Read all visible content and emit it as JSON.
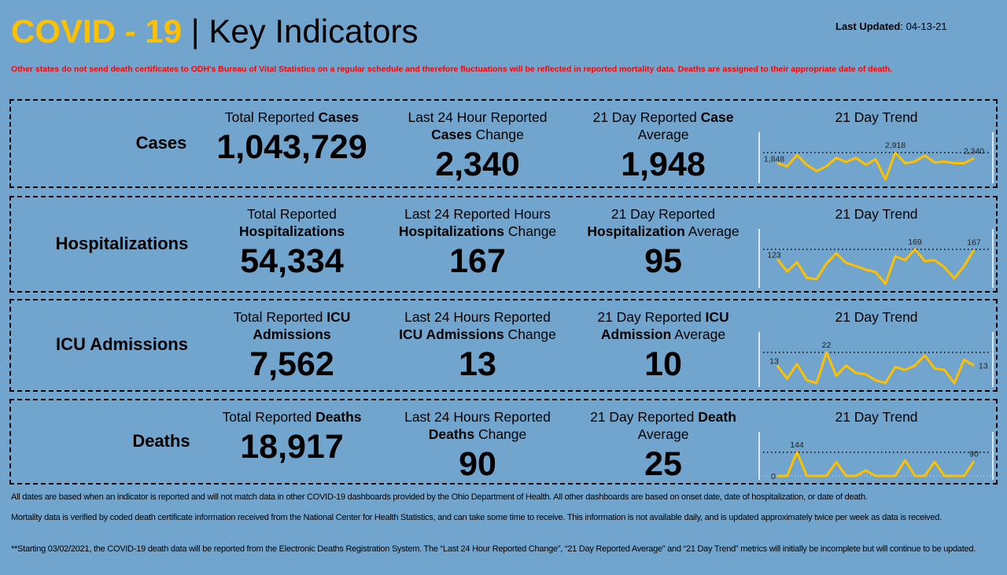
{
  "header": {
    "title_prefix": "COVID - 19",
    "title_sep": " | ",
    "title_main": "Key Indicators",
    "last_updated_label": "Last Updated",
    "last_updated_value": ": 04-13-21"
  },
  "notice": "Other states do not send death certificates to ODH's Bureau of Vital Statistics on a regular schedule and therefore fluctuations will be reflected in reported mortality data. Deaths are assigned to their appropriate date of death.",
  "colors": {
    "background": "#71a5cd",
    "title_accent": "#ffc000",
    "notice": "#ff0000",
    "trend_line": "#ffc000"
  },
  "panels": [
    {
      "label": "Cases",
      "cells": [
        {
          "lines": [
            [
              {
                "text": "Total Reported ",
                "bold": false
              },
              {
                "text": "Cases",
                "bold": true
              }
            ]
          ],
          "value": "1,043,729"
        },
        {
          "lines": [
            [
              {
                "text": "Last 24 Hour Reported",
                "bold": false
              }
            ],
            [
              {
                "text": "Cases",
                "bold": true
              },
              {
                "text": " Change",
                "bold": false
              }
            ]
          ],
          "value": "2,340"
        },
        {
          "lines": [
            [
              {
                "text": "21 Day Reported ",
                "bold": false
              },
              {
                "text": "Case",
                "bold": true
              }
            ],
            [
              {
                "text": "Average",
                "bold": false
              }
            ]
          ],
          "value": "1,948"
        }
      ],
      "trend": {
        "title": "21 Day Trend",
        "values": [
          1848,
          1539,
          2680,
          1681,
          1063,
          1539,
          2395,
          1967,
          2395,
          1681,
          2252,
          228,
          2918,
          1848,
          2015,
          2633,
          1919,
          2015,
          1848,
          1848,
          2340
        ],
        "labels": [
          {
            "index": 0,
            "text": "1,848"
          },
          {
            "index": 12,
            "text": "2,918"
          },
          {
            "index": 20,
            "text": "2,340"
          }
        ]
      }
    },
    {
      "label": "Hospitalizations",
      "cells": [
        {
          "lines": [
            [
              {
                "text": "Total Reported",
                "bold": false
              }
            ],
            [
              {
                "text": "Hospitalizations",
                "bold": true
              }
            ]
          ],
          "value": "54,334"
        },
        {
          "lines": [
            [
              {
                "text": "Last 24 Reported Hours",
                "bold": false
              }
            ],
            [
              {
                "text": "Hospitalizations",
                "bold": true
              },
              {
                "text": " Change",
                "bold": false
              }
            ]
          ],
          "value": "167"
        },
        {
          "lines": [
            [
              {
                "text": "21 Day Reported",
                "bold": false
              }
            ],
            [
              {
                "text": "Hospitalization",
                "bold": true
              },
              {
                "text": " Average",
                "bold": false
              }
            ]
          ],
          "value": "95"
        }
      ],
      "trend": {
        "title": "21 Day Trend",
        "values": [
          123,
          64,
          108,
          34,
          28,
          102,
          150,
          105,
          90,
          73,
          61,
          5,
          136,
          118,
          169,
          113,
          118,
          84,
          32,
          90,
          167
        ],
        "labels": [
          {
            "index": 0,
            "text": "123"
          },
          {
            "index": 14,
            "text": "169"
          },
          {
            "index": 20,
            "text": "167"
          }
        ]
      }
    },
    {
      "label": "ICU Admissions",
      "cells": [
        {
          "lines": [
            [
              {
                "text": "Total Reported ",
                "bold": false
              },
              {
                "text": "ICU",
                "bold": true
              }
            ],
            [
              {
                "text": "Admissions",
                "bold": true
              }
            ]
          ],
          "value": "7,562"
        },
        {
          "lines": [
            [
              {
                "text": "Last 24 Hours Reported",
                "bold": false
              }
            ],
            [
              {
                "text": "ICU Admissions",
                "bold": true
              },
              {
                "text": " Change",
                "bold": false
              }
            ]
          ],
          "value": "13"
        },
        {
          "lines": [
            [
              {
                "text": "21 Day Reported ",
                "bold": false
              },
              {
                "text": "ICU",
                "bold": true
              }
            ],
            [
              {
                "text": "Admission",
                "bold": true
              },
              {
                "text": " Average",
                "bold": false
              }
            ]
          ],
          "value": "10"
        }
      ],
      "trend": {
        "title": "21 Day Trend",
        "values": [
          13,
          4,
          14,
          3,
          1,
          22,
          6,
          13,
          8,
          7,
          3,
          1,
          12,
          10,
          13,
          20,
          11,
          10,
          1,
          17,
          13
        ],
        "labels": [
          {
            "index": 0,
            "text": "13"
          },
          {
            "index": 5,
            "text": "22"
          },
          {
            "index": 20,
            "text": "13"
          }
        ]
      }
    },
    {
      "label": "Deaths",
      "cells": [
        {
          "lines": [
            [
              {
                "text": "Total Reported ",
                "bold": false
              },
              {
                "text": "Deaths",
                "bold": true
              }
            ]
          ],
          "value": "18,917"
        },
        {
          "lines": [
            [
              {
                "text": "Last 24 Hours Reported",
                "bold": false
              }
            ],
            [
              {
                "text": "Deaths",
                "bold": true
              },
              {
                "text": " Change",
                "bold": false
              }
            ]
          ],
          "value": "90"
        },
        {
          "lines": [
            [
              {
                "text": "21 Day Reported ",
                "bold": false
              },
              {
                "text": "Death",
                "bold": true
              }
            ],
            [
              {
                "text": "Average",
                "bold": false
              }
            ]
          ],
          "value": "25"
        }
      ],
      "trend": {
        "title": "21 Day Trend",
        "values": [
          0,
          0,
          144,
          0,
          0,
          0,
          84,
          0,
          0,
          33,
          0,
          0,
          0,
          96,
          0,
          0,
          86,
          0,
          0,
          0,
          90
        ],
        "labels": [
          {
            "index": 0,
            "text": "0"
          },
          {
            "index": 2,
            "text": "144"
          },
          {
            "index": 20,
            "text": "90"
          }
        ]
      }
    }
  ],
  "footer": [
    "All dates are based when an indicator is reported and will not match data in other COVID-19 dashboards provided by the Ohio Department of Health. All other dashboards are based on onset date, date of hospitalization, or date of death.",
    "Mortality data is verified by coded death certificate information received from the National Center for Health Statistics, and can take some time to receive. This information is not available daily, and is updated approximately twice per week as data is received.",
    "**Starting 03/02/2021, the COVID-19 death data will be reported from the Electronic Deaths Registration System. The “Last 24 Hour Reported Change”, “21 Day Reported Average” and “21 Day Trend” metrics will initially be incomplete but will continue to be updated."
  ]
}
